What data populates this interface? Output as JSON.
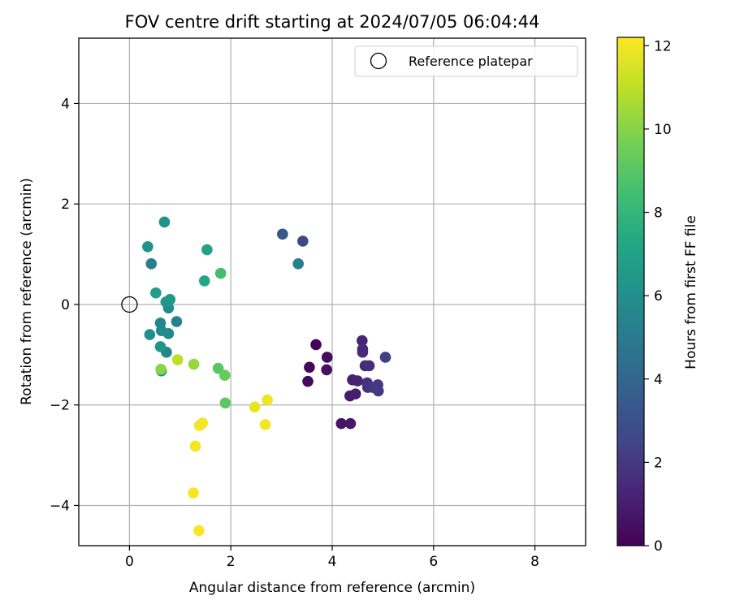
{
  "chart_data": {
    "type": "scatter",
    "title": "FOV centre drift starting at 2024/07/05 06:04:44",
    "xlabel": "Angular distance from reference (arcmin)",
    "ylabel": "Rotation from reference (arcmin)",
    "xlim": [
      -1,
      9
    ],
    "ylim": [
      -4.8,
      5.3
    ],
    "xticks": [
      0,
      2,
      4,
      6,
      8
    ],
    "xtick_labels": [
      "0",
      "2",
      "4",
      "6",
      "8"
    ],
    "yticks": [
      -4,
      -2,
      0,
      2,
      4
    ],
    "ytick_labels": [
      "−4",
      "−2",
      "0",
      "2",
      "4"
    ],
    "grid": true,
    "legend": {
      "placement": "top-right",
      "entries": [
        "Reference platepar"
      ]
    },
    "reference_point": {
      "x": 0,
      "y": 0,
      "label": "Reference platepar",
      "marker": "open-circle"
    },
    "colorbar": {
      "label": "Hours from first FF file",
      "range": [
        0,
        12.2
      ],
      "ticks": [
        0,
        2,
        4,
        6,
        8,
        10,
        12
      ],
      "tick_labels": [
        "0",
        "2",
        "4",
        "6",
        "8",
        "10",
        "12"
      ],
      "colormap": "viridis"
    },
    "points": [
      {
        "x": 3.68,
        "y": -0.8,
        "h": 0.1
      },
      {
        "x": 3.55,
        "y": -1.25,
        "h": 0.2
      },
      {
        "x": 3.52,
        "y": -1.53,
        "h": 0.3
      },
      {
        "x": 3.9,
        "y": -1.05,
        "h": 0.4
      },
      {
        "x": 3.89,
        "y": -1.3,
        "h": 0.5
      },
      {
        "x": 4.18,
        "y": -2.37,
        "h": 0.7
      },
      {
        "x": 4.36,
        "y": -2.37,
        "h": 0.8
      },
      {
        "x": 4.35,
        "y": -1.82,
        "h": 0.9
      },
      {
        "x": 4.46,
        "y": -1.78,
        "h": 1.0
      },
      {
        "x": 4.4,
        "y": -1.5,
        "h": 1.1
      },
      {
        "x": 4.5,
        "y": -1.52,
        "h": 1.2
      },
      {
        "x": 4.59,
        "y": -0.72,
        "h": 1.3
      },
      {
        "x": 4.6,
        "y": -0.89,
        "h": 1.35
      },
      {
        "x": 4.6,
        "y": -0.95,
        "h": 1.4
      },
      {
        "x": 4.65,
        "y": -1.22,
        "h": 1.5
      },
      {
        "x": 4.73,
        "y": -1.22,
        "h": 1.6
      },
      {
        "x": 4.69,
        "y": -1.56,
        "h": 1.7
      },
      {
        "x": 4.7,
        "y": -1.65,
        "h": 1.8
      },
      {
        "x": 4.8,
        "y": -1.65,
        "h": 1.9
      },
      {
        "x": 4.9,
        "y": -1.6,
        "h": 2.0
      },
      {
        "x": 4.91,
        "y": -1.72,
        "h": 2.1
      },
      {
        "x": 5.05,
        "y": -1.05,
        "h": 2.3
      },
      {
        "x": 3.42,
        "y": 1.26,
        "h": 2.7
      },
      {
        "x": 3.02,
        "y": 1.4,
        "h": 3.3
      },
      {
        "x": 3.33,
        "y": 0.81,
        "h": 5.2
      },
      {
        "x": 0.43,
        "y": 0.81,
        "h": 5.3
      },
      {
        "x": 0.93,
        "y": -0.34,
        "h": 5.4
      },
      {
        "x": 0.73,
        "y": -0.95,
        "h": 5.5
      },
      {
        "x": 0.61,
        "y": -0.37,
        "h": 5.6
      },
      {
        "x": 0.63,
        "y": -0.52,
        "h": 5.7
      },
      {
        "x": 0.77,
        "y": -0.58,
        "h": 5.8
      },
      {
        "x": 0.77,
        "y": -0.07,
        "h": 5.9
      },
      {
        "x": 0.63,
        "y": -1.32,
        "h": 6.0
      },
      {
        "x": 0.4,
        "y": -0.6,
        "h": 6.0
      },
      {
        "x": 0.36,
        "y": 1.15,
        "h": 6.1
      },
      {
        "x": 0.69,
        "y": 1.64,
        "h": 6.2
      },
      {
        "x": 0.61,
        "y": -0.84,
        "h": 6.3
      },
      {
        "x": 0.72,
        "y": 0.05,
        "h": 6.4
      },
      {
        "x": 0.8,
        "y": 0.1,
        "h": 6.5
      },
      {
        "x": 0.52,
        "y": 0.23,
        "h": 6.8
      },
      {
        "x": 1.53,
        "y": 1.09,
        "h": 7.0
      },
      {
        "x": 1.48,
        "y": 0.47,
        "h": 7.2
      },
      {
        "x": 1.8,
        "y": 0.62,
        "h": 8.5
      },
      {
        "x": 1.75,
        "y": -1.27,
        "h": 9.0
      },
      {
        "x": 1.89,
        "y": -1.96,
        "h": 9.1
      },
      {
        "x": 1.88,
        "y": -1.41,
        "h": 9.3
      },
      {
        "x": 0.62,
        "y": -1.29,
        "h": 10.0
      },
      {
        "x": 1.27,
        "y": -1.19,
        "h": 10.3
      },
      {
        "x": 0.95,
        "y": -1.1,
        "h": 11.0
      },
      {
        "x": 2.47,
        "y": -2.04,
        "h": 11.8
      },
      {
        "x": 2.72,
        "y": -1.9,
        "h": 11.9
      },
      {
        "x": 2.68,
        "y": -2.39,
        "h": 12.0
      },
      {
        "x": 1.38,
        "y": -2.41,
        "h": 12.0
      },
      {
        "x": 1.44,
        "y": -2.36,
        "h": 12.0
      },
      {
        "x": 1.3,
        "y": -2.82,
        "h": 12.0
      },
      {
        "x": 1.26,
        "y": -3.75,
        "h": 12.1
      },
      {
        "x": 1.37,
        "y": -4.5,
        "h": 12.1
      }
    ]
  }
}
